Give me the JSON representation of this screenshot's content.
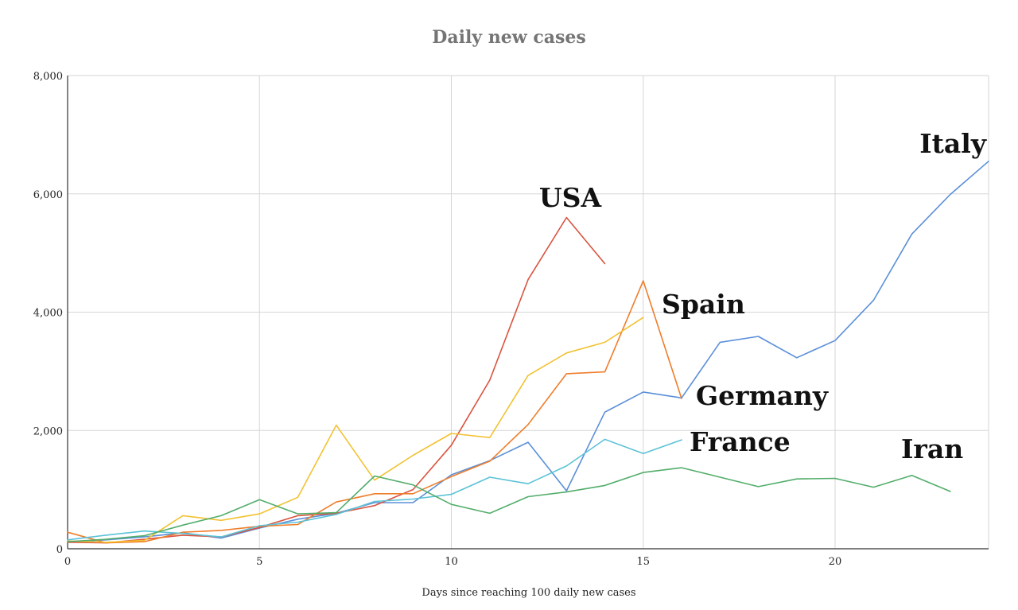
{
  "chart_data": {
    "type": "line",
    "title": "Daily new cases",
    "xlabel": "Days since reaching 100 daily new cases",
    "ylabel": "",
    "xlim": [
      0,
      24
    ],
    "ylim": [
      0,
      8000
    ],
    "x_ticks": [
      0,
      5,
      10,
      15,
      20
    ],
    "x_tick_labels": [
      "0",
      "5",
      "10",
      "15",
      "20"
    ],
    "y_ticks": [
      0,
      2000,
      4000,
      6000,
      8000
    ],
    "y_tick_labels": [
      "0",
      "2,000",
      "4,000",
      "6,000",
      "8,000"
    ],
    "grid": true,
    "series": [
      {
        "name": "Italy",
        "color": "#5b8fd9",
        "x": [
          0,
          1,
          2,
          3,
          4,
          5,
          6,
          7,
          8,
          9,
          10,
          11,
          12,
          13,
          14,
          15,
          16,
          17,
          18,
          19,
          20,
          21,
          22,
          23,
          24
        ],
        "values": [
          110,
          150,
          200,
          270,
          180,
          350,
          500,
          600,
          780,
          780,
          1250,
          1490,
          1800,
          980,
          2310,
          2650,
          2550,
          3490,
          3590,
          3230,
          3520,
          4200,
          5320,
          5990,
          6550
        ]
      },
      {
        "name": "USA",
        "color": "#d9533f",
        "x": [
          0,
          1,
          2,
          3,
          4,
          5,
          6,
          7,
          8,
          9,
          10,
          11,
          12,
          13,
          14
        ],
        "values": [
          110,
          100,
          160,
          230,
          200,
          360,
          560,
          600,
          730,
          1000,
          1750,
          2850,
          4550,
          5600,
          4820
        ]
      },
      {
        "name": "Spain",
        "color": "#ef7d2b",
        "x": [
          0,
          1,
          2,
          3,
          4,
          5,
          6,
          7,
          8,
          9,
          10,
          11,
          12,
          13,
          14,
          15,
          16
        ],
        "values": [
          280,
          100,
          120,
          280,
          310,
          380,
          410,
          790,
          930,
          930,
          1220,
          1480,
          2100,
          2960,
          2990,
          4530,
          2540
        ]
      },
      {
        "name": "Germany",
        "color": "#f2c232",
        "x": [
          0,
          1,
          2,
          3,
          4,
          5,
          6,
          7,
          8,
          9,
          10,
          11,
          12,
          13,
          14,
          15
        ],
        "values": [
          130,
          110,
          140,
          560,
          480,
          590,
          870,
          2090,
          1160,
          1580,
          1950,
          1880,
          2930,
          3310,
          3490,
          3910
        ]
      },
      {
        "name": "France",
        "color": "#5bc2d6",
        "x": [
          0,
          1,
          2,
          3,
          4,
          5,
          6,
          7,
          8,
          9,
          10,
          11,
          12,
          13,
          14,
          15,
          16
        ],
        "values": [
          150,
          230,
          300,
          260,
          200,
          390,
          450,
          580,
          800,
          840,
          920,
          1210,
          1100,
          1400,
          1850,
          1610,
          1840
        ]
      },
      {
        "name": "Iran",
        "color": "#52ad6b",
        "x": [
          0,
          1,
          2,
          3,
          4,
          5,
          6,
          7,
          8,
          9,
          10,
          11,
          12,
          13,
          14,
          15,
          16,
          17,
          18,
          19,
          20,
          21,
          22,
          23
        ],
        "values": [
          120,
          160,
          220,
          400,
          560,
          830,
          590,
          610,
          1230,
          1080,
          750,
          600,
          880,
          960,
          1070,
          1290,
          1370,
          1210,
          1050,
          1180,
          1190,
          1040,
          1240,
          970
        ]
      }
    ]
  }
}
